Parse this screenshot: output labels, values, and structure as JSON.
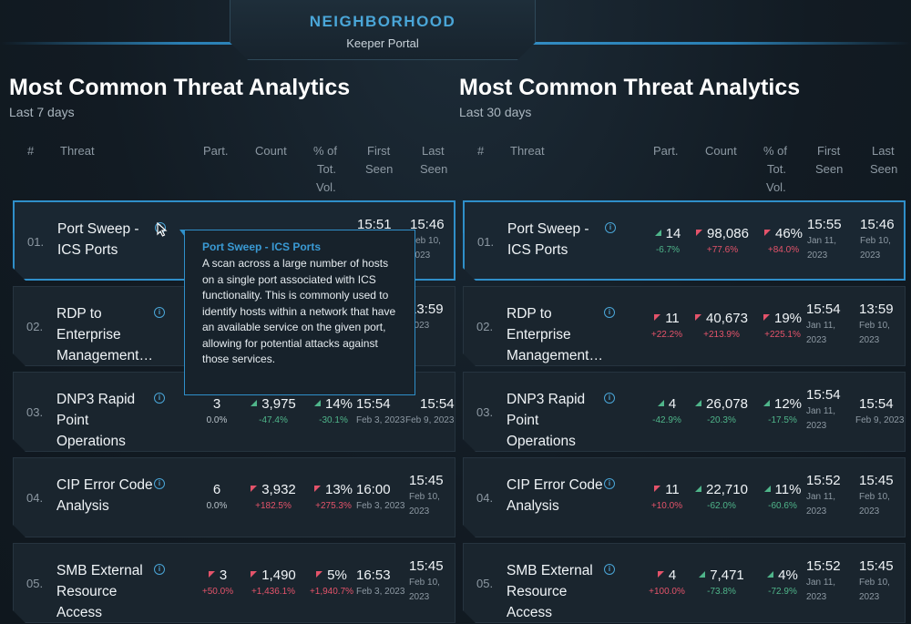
{
  "header": {
    "title": "NEIGHBORHOOD",
    "subtitle": "Keeper Portal"
  },
  "columns": {
    "num": "#",
    "threat": "Threat",
    "part": "Part.",
    "count": "Count",
    "pct_l1": "% of",
    "pct_l2": "Tot.",
    "pct_l3": "Vol.",
    "first_l1": "First",
    "first_l2": "Seen",
    "last_l1": "Last",
    "last_l2": "Seen"
  },
  "tooltip": {
    "title": "Port Sweep - ICS Ports",
    "body": "A scan across a large number of hosts on a single port associated with ICS functionality. This is commonly used to identify hosts within a network that have an available service on the given port, allowing for potential attacks against those services."
  },
  "left": {
    "title": "Most Common Threat Analytics",
    "subtitle": "Last 7 days",
    "rows": [
      {
        "idx": "01.",
        "name": "Port Sweep - ICS Ports",
        "first_time": "15:51",
        "last_time": "15:46",
        "last_date": "Feb 10, 2023"
      },
      {
        "idx": "02.",
        "name": "RDP to Enterprise Management…",
        "last_time": "13:59",
        "last_date": "2023"
      },
      {
        "idx": "03.",
        "name": "DNP3 Rapid Point Operations",
        "part": "3",
        "part_d": "0.0%",
        "count": "3,975",
        "count_d": "-47.4%",
        "pct": "14%",
        "pct_d": "-30.1%",
        "first_time": "15:54",
        "first_date": "Feb 3, 2023",
        "last_time": "15:54",
        "last_date": "Feb 9, 2023"
      },
      {
        "idx": "04.",
        "name": "CIP Error Code Analysis",
        "part": "6",
        "part_d": "0.0%",
        "count": "3,932",
        "count_d": "+182.5%",
        "pct": "13%",
        "pct_d": "+275.3%",
        "first_time": "16:00",
        "first_date": "Feb 3, 2023",
        "last_time": "15:45",
        "last_date": "Feb 10, 2023"
      },
      {
        "idx": "05.",
        "name": "SMB External Resource Access",
        "part": "3",
        "part_d": "+50.0%",
        "count": "1,490",
        "count_d": "+1,436.1%",
        "pct": "5%",
        "pct_d": "+1,940.7%",
        "first_time": "16:53",
        "first_date": "Feb 3, 2023",
        "last_time": "15:45",
        "last_date": "Feb 10, 2023"
      }
    ]
  },
  "right": {
    "title": "Most Common Threat Analytics",
    "subtitle": "Last 30 days",
    "rows": [
      {
        "idx": "01.",
        "name": "Port Sweep - ICS Ports",
        "part": "14",
        "part_d": "-6.7%",
        "count": "98,086",
        "count_d": "+77.6%",
        "pct": "46%",
        "pct_d": "+84.0%",
        "first_time": "15:55",
        "first_date": "Jan 11, 2023",
        "last_time": "15:46",
        "last_date": "Feb 10, 2023"
      },
      {
        "idx": "02.",
        "name": "RDP to Enterprise Management…",
        "part": "11",
        "part_d": "+22.2%",
        "count": "40,673",
        "count_d": "+213.9%",
        "pct": "19%",
        "pct_d": "+225.1%",
        "first_time": "15:54",
        "first_date": "Jan 11, 2023",
        "last_time": "13:59",
        "last_date": "Feb 10, 2023"
      },
      {
        "idx": "03.",
        "name": "DNP3 Rapid Point Operations",
        "part": "4",
        "part_d": "-42.9%",
        "count": "26,078",
        "count_d": "-20.3%",
        "pct": "12%",
        "pct_d": "-17.5%",
        "first_time": "15:54",
        "first_date": "Jan 11, 2023",
        "last_time": "15:54",
        "last_date": "Feb 9, 2023"
      },
      {
        "idx": "04.",
        "name": "CIP Error Code Analysis",
        "part": "11",
        "part_d": "+10.0%",
        "count": "22,710",
        "count_d": "-62.0%",
        "pct": "11%",
        "pct_d": "-60.6%",
        "first_time": "15:52",
        "first_date": "Jan 11, 2023",
        "last_time": "15:45",
        "last_date": "Feb 10, 2023"
      },
      {
        "idx": "05.",
        "name": "SMB External Resource Access",
        "part": "4",
        "part_d": "+100.0%",
        "count": "7,471",
        "count_d": "-73.8%",
        "pct": "4%",
        "pct_d": "-72.9%",
        "first_time": "15:52",
        "first_date": "Jan 11, 2023",
        "last_time": "15:45",
        "last_date": "Feb 10, 2023"
      }
    ]
  }
}
